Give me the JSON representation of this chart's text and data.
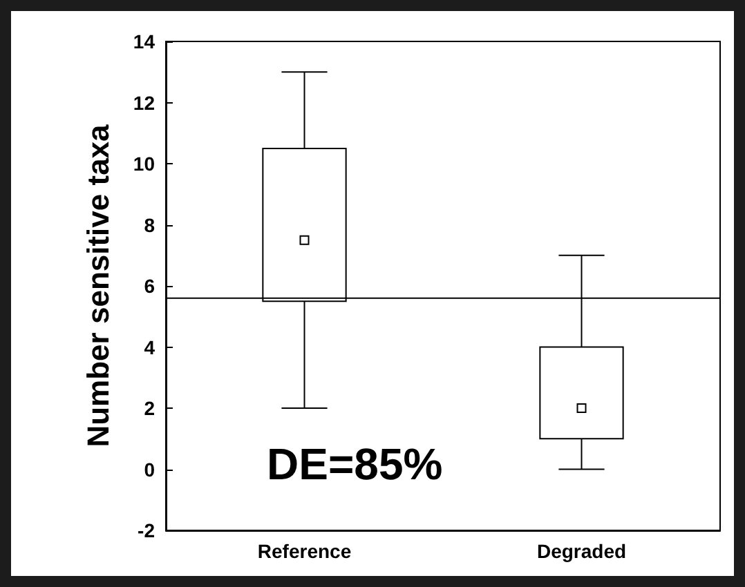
{
  "chart_data": {
    "type": "box",
    "ylabel": "Number sensitive taxa",
    "categories": [
      "Reference",
      "Degraded"
    ],
    "boxes": [
      {
        "low": 2,
        "q1": 5.5,
        "median": 7.5,
        "q3": 10.5,
        "high": 13
      },
      {
        "low": 0,
        "q1": 1,
        "median": 2,
        "q3": 4,
        "high": 7
      }
    ],
    "ylim": [
      -2,
      14
    ],
    "yticks": [
      -2,
      0,
      2,
      4,
      6,
      8,
      10,
      12,
      14
    ],
    "grid": false,
    "marker": "square",
    "ref_lines": [
      {
        "axis": "y",
        "value": 5.6,
        "color": "#000000"
      }
    ],
    "annotations": [
      "DE=85%"
    ]
  }
}
